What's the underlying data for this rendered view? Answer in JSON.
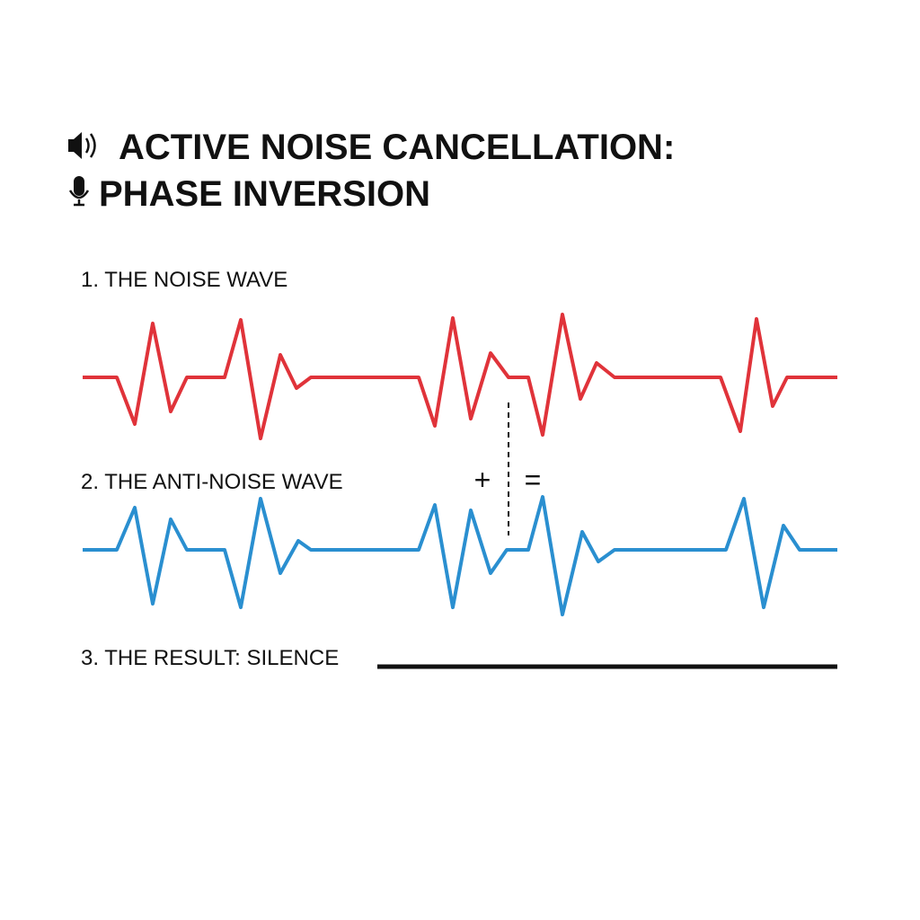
{
  "title": [
    "ACTIVE NOISE CANCELLATION:",
    "PHASE INVERSION"
  ],
  "sections": [
    {
      "label": "1. THE NOISE WAVE"
    },
    {
      "label": "2. THE ANTI-NOISE WAVE"
    },
    {
      "label": "3. THE RESULT: SILENCE"
    }
  ],
  "operators": [
    "+",
    "="
  ]
}
